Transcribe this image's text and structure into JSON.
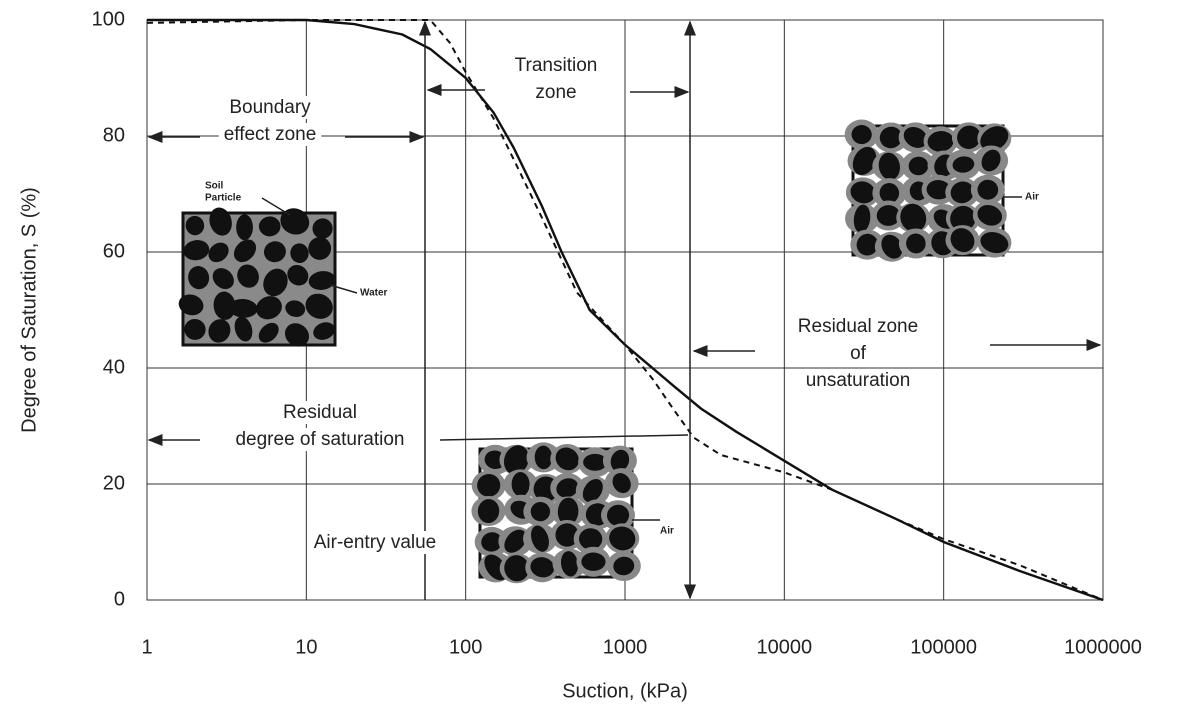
{
  "chart_data": {
    "type": "line",
    "x_label": "Suction, (kPa)",
    "y_label": "Degree of Saturation, S (%)",
    "log_x": true,
    "grid": true,
    "xlim": [
      1,
      1000000
    ],
    "ylim": [
      0,
      100
    ],
    "xticks": [
      1,
      10,
      100,
      1000,
      10000,
      100000,
      1000000
    ],
    "yticks": [
      0,
      20,
      40,
      60,
      80,
      100
    ],
    "series": [
      {
        "color": "#111111",
        "dash": "solid",
        "x": [
          1,
          10,
          20,
          40,
          60,
          100,
          150,
          200,
          300,
          400,
          600,
          1000,
          2000,
          3000,
          5000,
          10000,
          20000,
          50000,
          100000,
          300000,
          1000000
        ],
        "values": [
          100,
          100,
          99.3,
          97.5,
          95,
          90,
          84,
          78,
          68,
          60,
          50,
          44,
          37,
          33,
          29,
          24,
          19,
          14,
          10,
          5,
          0
        ]
      },
      {
        "color": "#111111",
        "dash": "dashed",
        "x": [
          1,
          10,
          60,
          80,
          100,
          150,
          200,
          300,
          500,
          1000,
          1500,
          2000,
          2700,
          4000,
          10000,
          20000,
          50000,
          100000,
          300000,
          1000000
        ],
        "values": [
          99.5,
          100,
          100,
          96,
          91,
          83,
          76,
          66,
          53,
          44,
          38,
          33,
          28,
          25,
          22,
          19,
          14,
          10.5,
          6,
          0
        ]
      }
    ],
    "annotations": [
      {
        "lines": [
          "Boundary",
          "effect zone"
        ]
      },
      {
        "lines": [
          "Transition",
          "zone"
        ]
      },
      {
        "lines": [
          "Residual zone",
          "of",
          "unsaturation"
        ]
      },
      {
        "lines": [
          "Residual",
          "degree of saturation"
        ]
      },
      {
        "lines": [
          "Air-entry value"
        ]
      },
      {
        "lines": [
          "Soil",
          "Particle"
        ]
      },
      {
        "lines": [
          "Water"
        ]
      },
      {
        "lines": [
          "Air"
        ]
      },
      {
        "lines": [
          "Air"
        ]
      }
    ]
  }
}
